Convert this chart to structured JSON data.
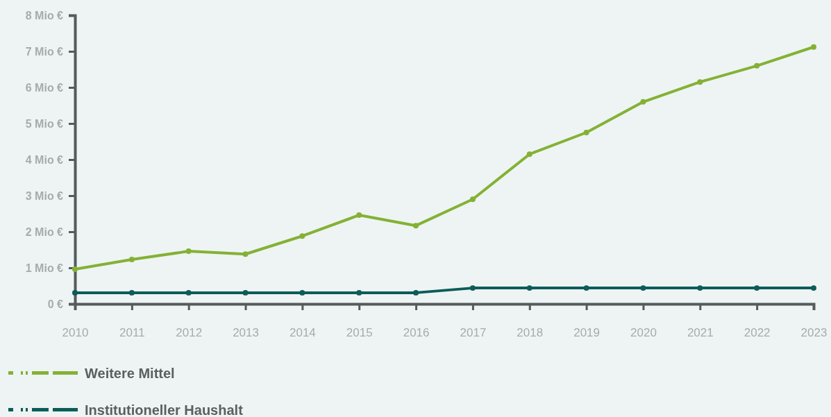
{
  "chart_data": {
    "type": "line",
    "x": [
      2010,
      2011,
      2012,
      2013,
      2014,
      2015,
      2016,
      2017,
      2018,
      2019,
      2020,
      2021,
      2022,
      2023
    ],
    "xlim": [
      2010,
      2023
    ],
    "xticks": [
      2010,
      2011,
      2012,
      2013,
      2014,
      2015,
      2016,
      2017,
      2018,
      2019,
      2020,
      2021,
      2022,
      2023
    ],
    "ylim": [
      0,
      8
    ],
    "yticks": [
      {
        "value": 0,
        "label": "0 €"
      },
      {
        "value": 1,
        "label": "1 Mio €"
      },
      {
        "value": 2,
        "label": "2 Mio €"
      },
      {
        "value": 3,
        "label": "3 Mio €"
      },
      {
        "value": 4,
        "label": "4 Mio €"
      },
      {
        "value": 5,
        "label": "5 Mio €"
      },
      {
        "value": 6,
        "label": "6 Mio €"
      },
      {
        "value": 7,
        "label": "7 Mio €"
      },
      {
        "value": 8,
        "label": "8 Mio €"
      }
    ],
    "series": [
      {
        "name": "Weitere Mittel",
        "color": "#84b135",
        "values": [
          0.96,
          1.23,
          1.46,
          1.38,
          1.88,
          2.46,
          2.17,
          2.9,
          4.15,
          4.75,
          5.6,
          6.15,
          6.6,
          7.12
        ]
      },
      {
        "name": "Institutioneller Haushalt",
        "color": "#0b5c5a",
        "values": [
          0.31,
          0.31,
          0.31,
          0.31,
          0.31,
          0.31,
          0.31,
          0.44,
          0.44,
          0.44,
          0.44,
          0.44,
          0.44,
          0.44
        ]
      }
    ],
    "marker": "circle",
    "line_style": "solid",
    "grid": false,
    "legend": "bottom left"
  }
}
